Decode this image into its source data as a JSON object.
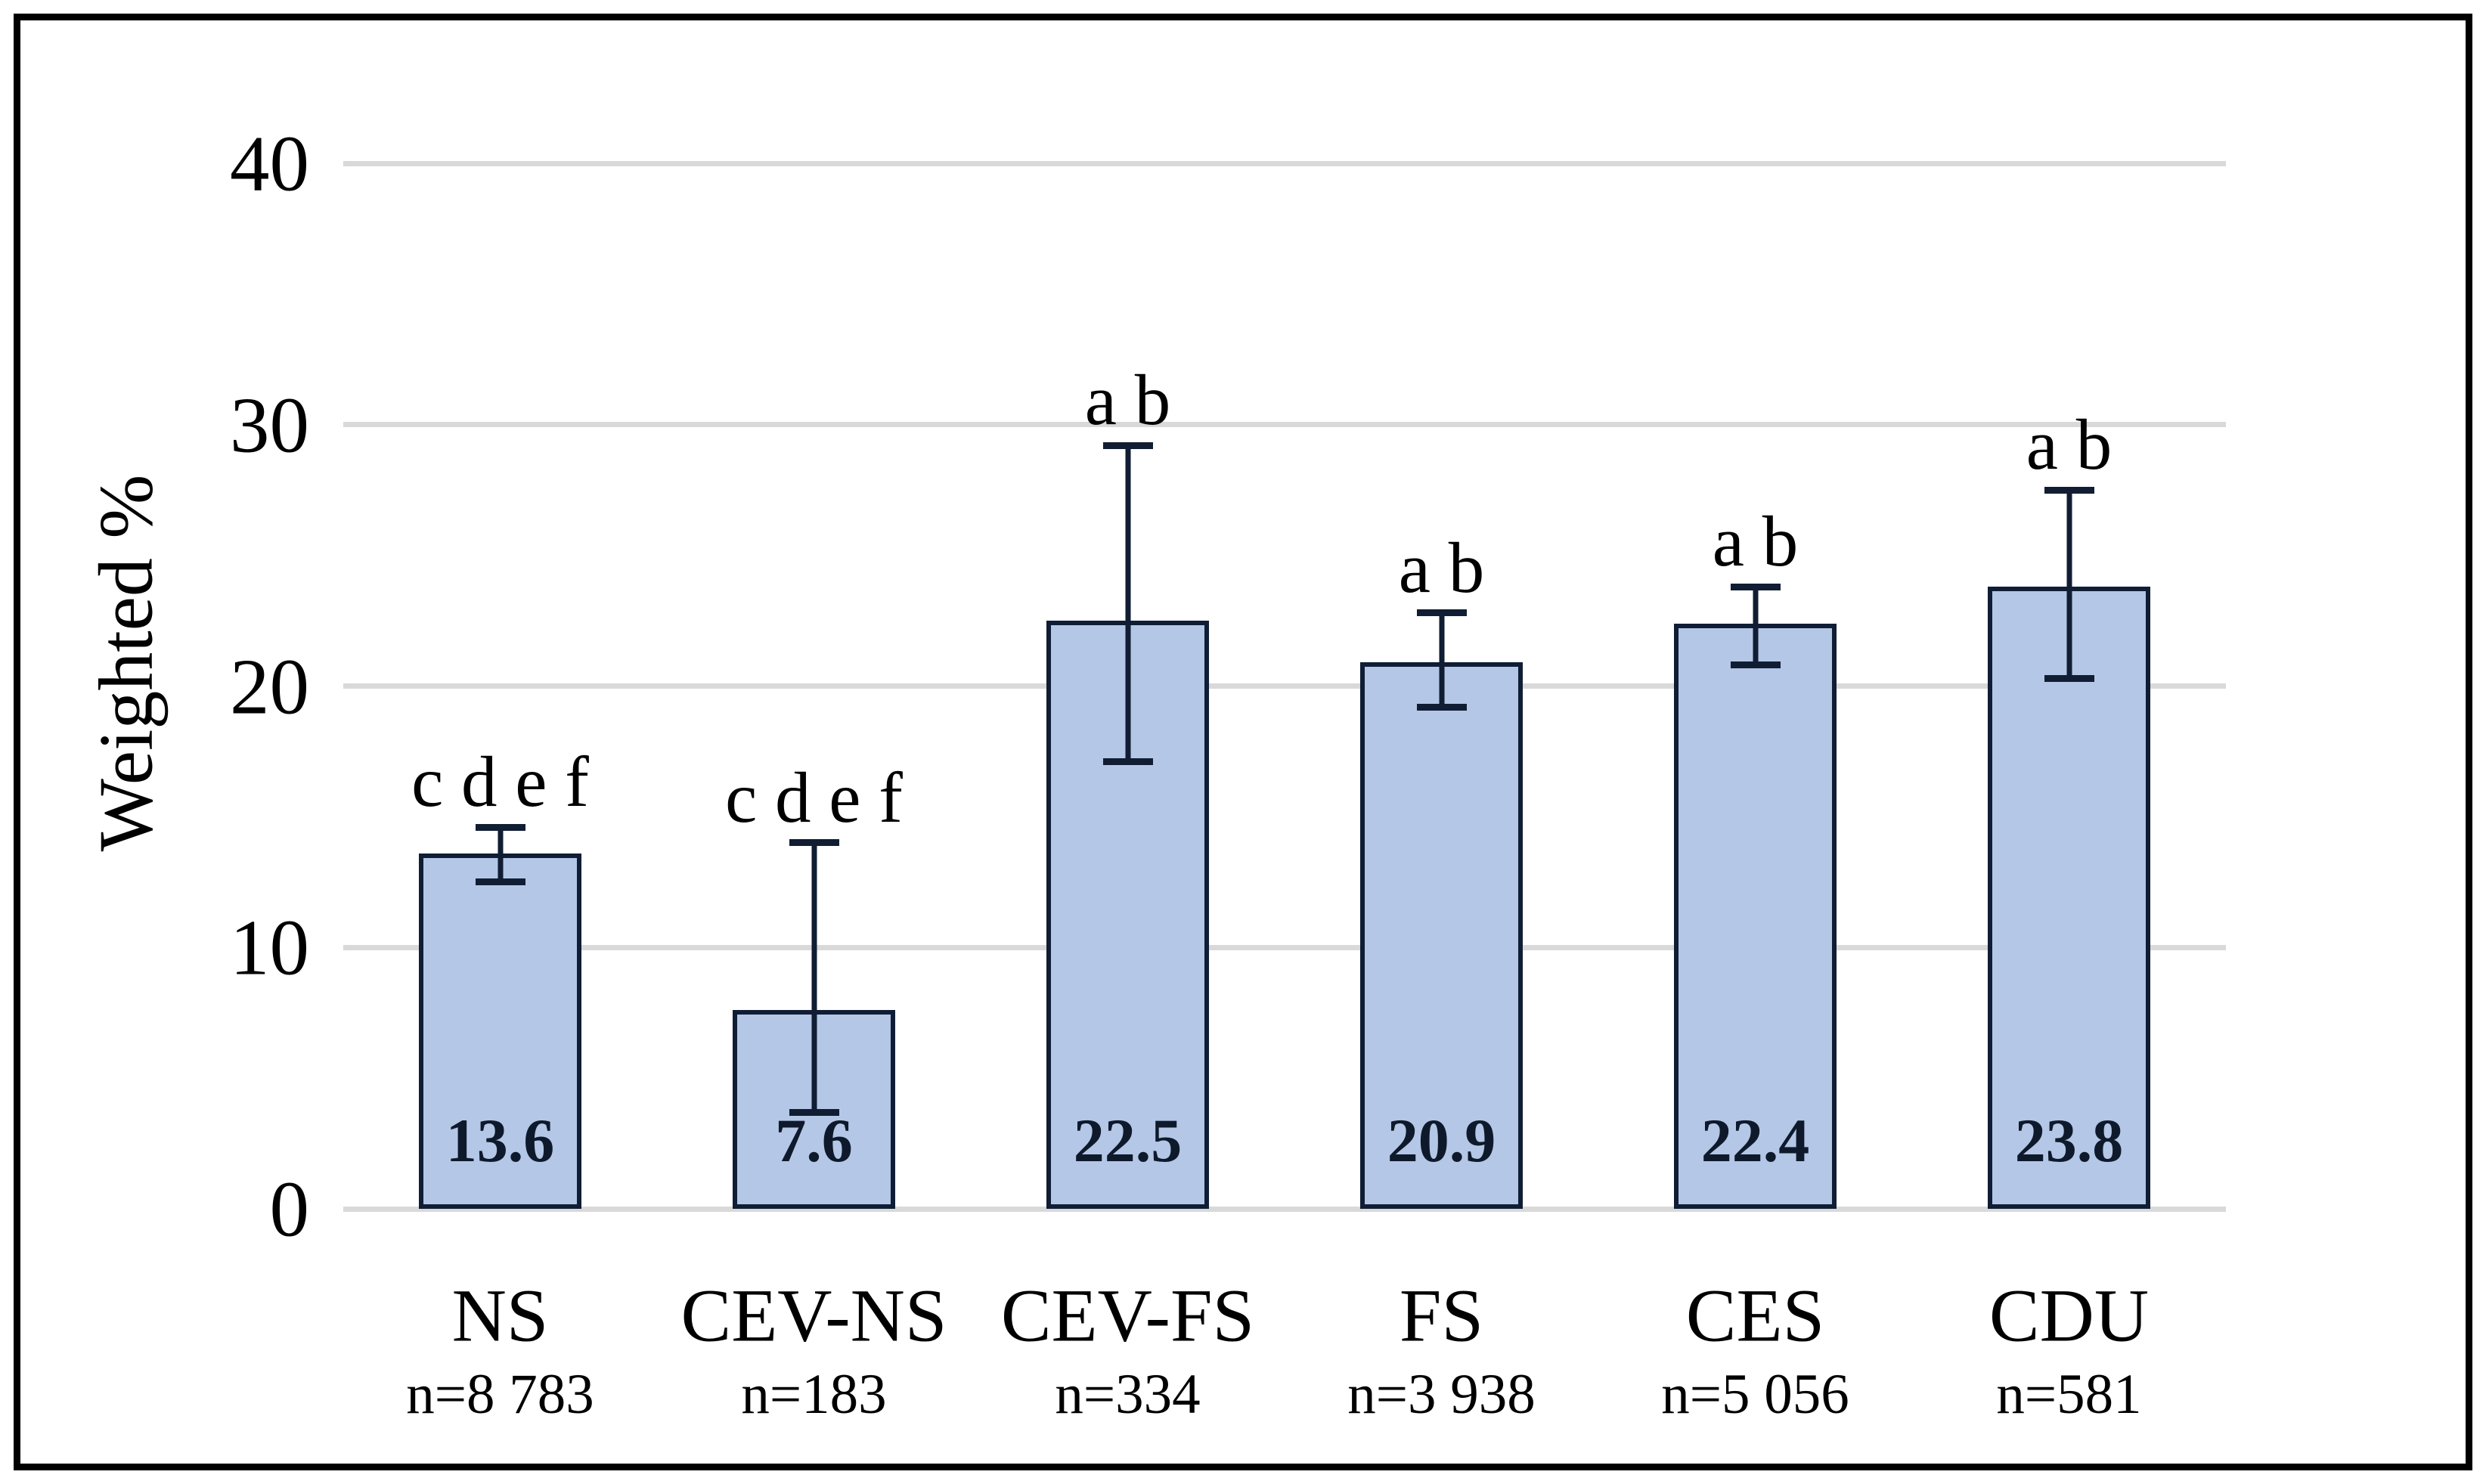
{
  "figure": {
    "background": "#ffffff",
    "frame_color": "#000000"
  },
  "chart_data": {
    "type": "bar",
    "title": "",
    "xlabel": "",
    "ylabel": "Weighted %",
    "ylim": [
      0,
      40
    ],
    "yticks": [
      0,
      10,
      20,
      30,
      40
    ],
    "grid": true,
    "legend": "none",
    "categories": [
      "NS",
      "CEV-NS",
      "CEV-FS",
      "FS",
      "CES",
      "CDU"
    ],
    "bars": [
      {
        "category": "NS",
        "n_label": "n=8 783",
        "value": 13.6,
        "value_label": "13.6",
        "error_low": 12.5,
        "error_high": 14.6,
        "letters": "c d e f"
      },
      {
        "category": "CEV-NS",
        "n_label": "n=183",
        "value": 7.6,
        "value_label": "7.6",
        "error_low": 3.7,
        "error_high": 14.0,
        "letters": "c d e f"
      },
      {
        "category": "CEV-FS",
        "n_label": "n=334",
        "value": 22.5,
        "value_label": "22.5",
        "error_low": 17.1,
        "error_high": 29.2,
        "letters": "a b"
      },
      {
        "category": "FS",
        "n_label": "n=3 938",
        "value": 20.9,
        "value_label": "20.9",
        "error_low": 19.2,
        "error_high": 22.8,
        "letters": "a b"
      },
      {
        "category": "CES",
        "n_label": "n=5 056",
        "value": 22.4,
        "value_label": "22.4",
        "error_low": 20.8,
        "error_high": 23.8,
        "letters": "a b"
      },
      {
        "category": "CDU",
        "n_label": "n=581",
        "value": 23.8,
        "value_label": "23.8",
        "error_low": 20.3,
        "error_high": 27.5,
        "letters": "a b"
      }
    ],
    "colors": {
      "bar_fill": "#b4c7e7",
      "bar_border": "#0f1d35",
      "error_bar": "#101d33",
      "gridline": "#d9d9d9",
      "tick_text": "#000000",
      "value_text": "#0e1a2b",
      "frame": "#000000"
    }
  }
}
